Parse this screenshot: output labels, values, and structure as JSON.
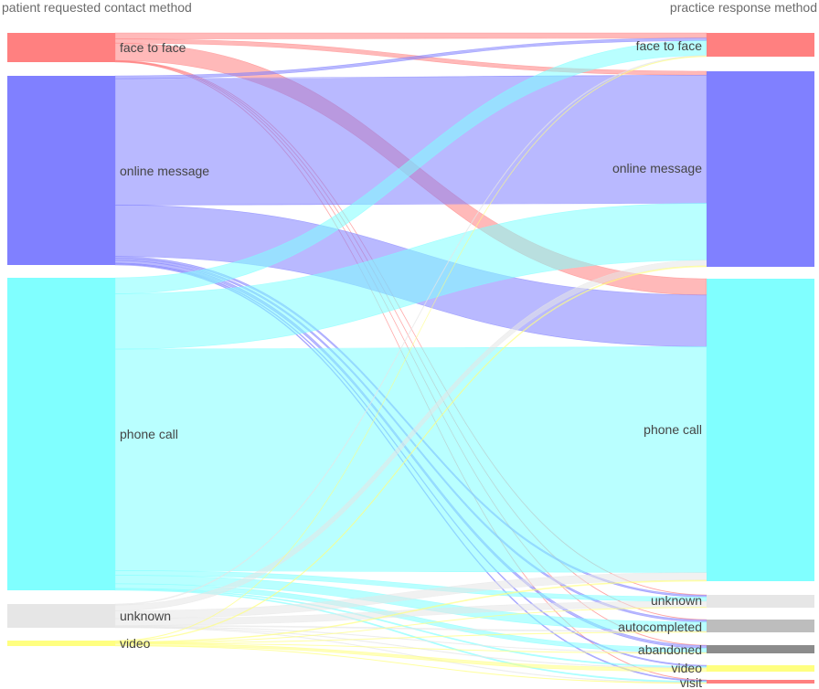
{
  "chart_data": {
    "type": "sankey",
    "left_title": "patient requested contact method",
    "right_title": "practice response method",
    "sources": [
      {
        "name": "face to face",
        "color": "#ff8080"
      },
      {
        "name": "online message",
        "color": "#8080ff"
      },
      {
        "name": "phone call",
        "color": "#80ffff"
      },
      {
        "name": "unknown",
        "color": "#e6e6e6"
      },
      {
        "name": "video",
        "color": "#ffff80"
      }
    ],
    "targets": [
      {
        "name": "face to face",
        "color": "#ff8080"
      },
      {
        "name": "online message",
        "color": "#8080ff"
      },
      {
        "name": "phone call",
        "color": "#80ffff"
      },
      {
        "name": "unknown",
        "color": "#e6e6e6"
      },
      {
        "name": "autocompleted",
        "color": "#bdbdbd"
      },
      {
        "name": "abandoned",
        "color": "#8c8c8c"
      },
      {
        "name": "video",
        "color": "#ffff80"
      },
      {
        "name": "visit",
        "color": "#ff8080"
      }
    ],
    "flows": [
      {
        "source": "face to face",
        "target": "face to face",
        "value": 6
      },
      {
        "source": "face to face",
        "target": "phone call",
        "value": 17
      },
      {
        "source": "face to face",
        "target": "online message",
        "value": 4
      },
      {
        "source": "face to face",
        "target": "unknown",
        "value": 0.4
      },
      {
        "source": "face to face",
        "target": "autocompleted",
        "value": 0.4
      },
      {
        "source": "face to face",
        "target": "abandoned",
        "value": 0.4
      },
      {
        "source": "face to face",
        "target": "visit",
        "value": 0.4
      },
      {
        "source": "online message",
        "target": "online message",
        "value": 133
      },
      {
        "source": "online message",
        "target": "phone call",
        "value": 54
      },
      {
        "source": "online message",
        "target": "face to face",
        "value": 3
      },
      {
        "source": "online message",
        "target": "unknown",
        "value": 2
      },
      {
        "source": "online message",
        "target": "autocompleted",
        "value": 2
      },
      {
        "source": "online message",
        "target": "abandoned",
        "value": 3
      },
      {
        "source": "online message",
        "target": "video",
        "value": 1
      },
      {
        "source": "online message",
        "target": "visit",
        "value": 1
      },
      {
        "source": "phone call",
        "target": "online message",
        "value": 59
      },
      {
        "source": "phone call",
        "target": "phone call",
        "value": 236
      },
      {
        "source": "phone call",
        "target": "face to face",
        "value": 17
      },
      {
        "source": "phone call",
        "target": "unknown",
        "value": 5
      },
      {
        "source": "phone call",
        "target": "autocompleted",
        "value": 9
      },
      {
        "source": "phone call",
        "target": "abandoned",
        "value": 5
      },
      {
        "source": "phone call",
        "target": "video",
        "value": 1
      },
      {
        "source": "phone call",
        "target": "visit",
        "value": 1
      },
      {
        "source": "unknown",
        "target": "online message",
        "value": 6
      },
      {
        "source": "unknown",
        "target": "phone call",
        "value": 8
      },
      {
        "source": "unknown",
        "target": "face to face",
        "value": 1
      },
      {
        "source": "unknown",
        "target": "unknown",
        "value": 7
      },
      {
        "source": "unknown",
        "target": "autocompleted",
        "value": 1
      },
      {
        "source": "unknown",
        "target": "abandoned",
        "value": 0.5
      },
      {
        "source": "unknown",
        "target": "video",
        "value": 0.5
      },
      {
        "source": "unknown",
        "target": "visit",
        "value": 0.5
      },
      {
        "source": "video",
        "target": "online message",
        "value": 1
      },
      {
        "source": "video",
        "target": "phone call",
        "value": 1
      },
      {
        "source": "video",
        "target": "face to face",
        "value": 0.5
      },
      {
        "source": "video",
        "target": "unknown",
        "value": 0.5
      },
      {
        "source": "video",
        "target": "autocompleted",
        "value": 0.5
      },
      {
        "source": "video",
        "target": "abandoned",
        "value": 0.5
      },
      {
        "source": "video",
        "target": "video",
        "value": 3
      },
      {
        "source": "video",
        "target": "visit",
        "value": 0.5
      }
    ],
    "node_totals_left": [
      28.6,
      199,
      333,
      24.5,
      7
    ],
    "node_totals_right": [
      27.5,
      203,
      316,
      14.9,
      12.9,
      9.4,
      5.5,
      3.4
    ]
  }
}
